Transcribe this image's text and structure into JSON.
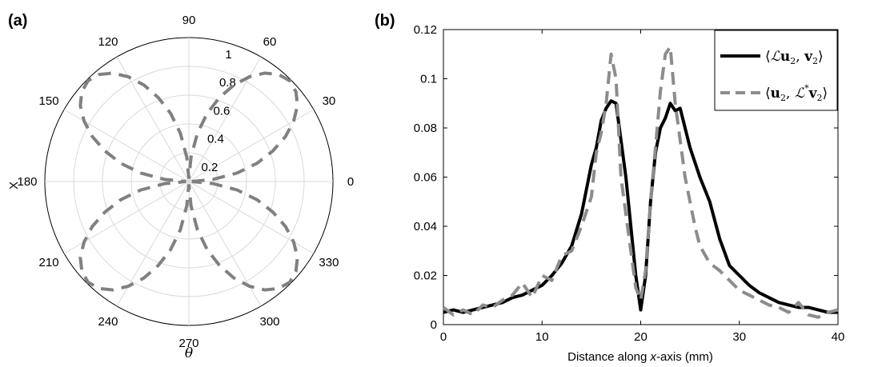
{
  "chart_data": [
    {
      "panel_label": "(a)",
      "type": "polar-line",
      "ylabel": "X",
      "xlabel": "θ",
      "r_ticks": [
        "0.2",
        "0.4",
        "0.6",
        "0.8",
        "1"
      ],
      "theta_ticks": [
        "0",
        "30",
        "60",
        "90",
        "120",
        "150",
        "180",
        "210",
        "240",
        "270",
        "300",
        "330"
      ],
      "r_lim": [
        0,
        1
      ],
      "series": [
        {
          "style": "gray dashed",
          "color": "#808080",
          "formula_description": "four-lobed pattern, lobes at 45/135/225/315 deg",
          "theta_deg": [
            0,
            5,
            10,
            15,
            20,
            25,
            30,
            35,
            40,
            45,
            50,
            55,
            60,
            65,
            70,
            75,
            80,
            85,
            90,
            95,
            100,
            105,
            110,
            115,
            120,
            125,
            130,
            135,
            140,
            145,
            150,
            155,
            160,
            165,
            170,
            175,
            180,
            185,
            190,
            195,
            200,
            205,
            210,
            215,
            220,
            225,
            230,
            235,
            240,
            245,
            250,
            255,
            260,
            265,
            270,
            275,
            280,
            285,
            290,
            295,
            300,
            305,
            310,
            315,
            320,
            325,
            330,
            335,
            340,
            345,
            350,
            355,
            360
          ],
          "r": [
            0.02,
            0.17,
            0.34,
            0.49,
            0.62,
            0.74,
            0.84,
            0.92,
            0.97,
            0.99,
            0.97,
            0.92,
            0.84,
            0.74,
            0.62,
            0.49,
            0.34,
            0.17,
            0.02,
            0.17,
            0.34,
            0.49,
            0.62,
            0.74,
            0.84,
            0.92,
            0.97,
            0.99,
            0.97,
            0.92,
            0.84,
            0.74,
            0.62,
            0.49,
            0.34,
            0.17,
            0.02,
            0.17,
            0.34,
            0.49,
            0.62,
            0.74,
            0.84,
            0.92,
            0.97,
            0.99,
            0.97,
            0.92,
            0.84,
            0.74,
            0.62,
            0.49,
            0.34,
            0.17,
            0.02,
            0.17,
            0.34,
            0.49,
            0.62,
            0.74,
            0.84,
            0.92,
            0.97,
            0.99,
            0.97,
            0.92,
            0.84,
            0.74,
            0.62,
            0.49,
            0.34,
            0.17,
            0.02
          ]
        }
      ]
    },
    {
      "panel_label": "(b)",
      "type": "line",
      "xlabel": "Distance along x-axis (mm)",
      "xlim": [
        0,
        40
      ],
      "ylim": [
        0,
        0.12
      ],
      "x_ticks": [
        "0",
        "10",
        "20",
        "30",
        "40"
      ],
      "y_ticks": [
        "0",
        "0.02",
        "0.04",
        "0.06",
        "0.08",
        "0.1",
        "0.12"
      ],
      "legend_position": "top-right",
      "series": [
        {
          "name": "⟨ℒu₂, v₂⟩",
          "color": "#000000",
          "style": "solid",
          "x": [
            0,
            1,
            2,
            3,
            4,
            5,
            6,
            7,
            8,
            9,
            10,
            11,
            12,
            13,
            14,
            15,
            15.5,
            16,
            16.5,
            17,
            17.5,
            18,
            18.5,
            19,
            19.5,
            20,
            20.5,
            21,
            21.5,
            22,
            22.5,
            23,
            23.5,
            24,
            24.5,
            25,
            25.5,
            26,
            27,
            28,
            29,
            30,
            31,
            32,
            33,
            34,
            35,
            36,
            37,
            38,
            39,
            40
          ],
          "y": [
            0.005,
            0.006,
            0.005,
            0.006,
            0.007,
            0.008,
            0.009,
            0.011,
            0.012,
            0.014,
            0.016,
            0.02,
            0.025,
            0.032,
            0.045,
            0.065,
            0.072,
            0.083,
            0.088,
            0.091,
            0.09,
            0.075,
            0.06,
            0.04,
            0.02,
            0.006,
            0.02,
            0.05,
            0.07,
            0.08,
            0.084,
            0.09,
            0.087,
            0.088,
            0.08,
            0.072,
            0.066,
            0.06,
            0.05,
            0.035,
            0.024,
            0.02,
            0.016,
            0.013,
            0.011,
            0.009,
            0.008,
            0.007,
            0.007,
            0.006,
            0.005,
            0.005
          ]
        },
        {
          "name": "⟨u₂, ℒ*v₂⟩",
          "color": "#8c8c8c",
          "style": "dashed",
          "x": [
            0,
            1,
            2,
            3,
            4,
            5,
            6,
            7,
            8,
            9,
            10,
            11,
            12,
            13,
            14,
            15,
            15.5,
            16,
            16.5,
            17,
            17.5,
            18,
            18.5,
            19,
            19.5,
            20,
            20.5,
            21,
            21.5,
            22,
            22.5,
            23,
            23.5,
            24,
            24.5,
            25,
            25.5,
            26,
            27,
            28,
            29,
            30,
            31,
            32,
            33,
            34,
            35,
            36,
            37,
            38,
            39,
            40
          ],
          "y": [
            0.007,
            0.004,
            0.006,
            0.004,
            0.008,
            0.007,
            0.01,
            0.012,
            0.017,
            0.011,
            0.02,
            0.018,
            0.028,
            0.03,
            0.04,
            0.052,
            0.07,
            0.078,
            0.09,
            0.11,
            0.1,
            0.06,
            0.045,
            0.03,
            0.015,
            0.01,
            0.022,
            0.05,
            0.072,
            0.095,
            0.11,
            0.113,
            0.09,
            0.075,
            0.06,
            0.05,
            0.04,
            0.032,
            0.025,
            0.022,
            0.018,
            0.014,
            0.012,
            0.01,
            0.008,
            0.007,
            0.005,
            0.009,
            0.004,
            0.003,
            0.005,
            0.006
          ]
        }
      ]
    }
  ]
}
